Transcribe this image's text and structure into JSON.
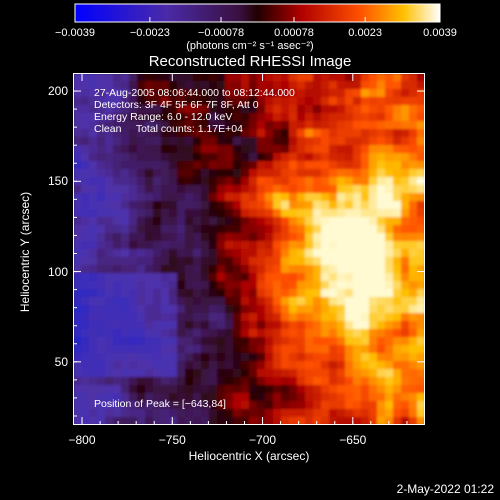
{
  "chart_data": {
    "type": "heatmap",
    "title": "Reconstructed RHESSI Image",
    "xlabel": "Heliocentric X (arcsec)",
    "ylabel": "Heliocentric Y (arcsec)",
    "xlim": [
      -805,
      -610
    ],
    "ylim": [
      15,
      210
    ],
    "x_ticks": [
      "−800",
      "−750",
      "−700",
      "−650"
    ],
    "x_tick_values": [
      -800,
      -750,
      -700,
      -650
    ],
    "y_ticks": [
      "200",
      "150",
      "100",
      "50"
    ],
    "y_tick_values": [
      200,
      150,
      100,
      50
    ],
    "colorbar": {
      "ticks": [
        "−0.0039",
        "−0.0023",
        "−0.00078",
        "0.00078",
        "0.0023",
        "0.0039"
      ],
      "tick_values": [
        -0.0039,
        -0.0023,
        -0.00078,
        0.00078,
        0.0023,
        0.0039
      ],
      "range": [
        -0.0039,
        0.0039
      ],
      "units": "(photons cm⁻² s⁻¹ asec⁻²)"
    },
    "annotations": [
      "27-Aug-2005 08:06:44.000 to 08:12:44.000",
      "Detectors: 3F 4F 5F 6F 7F 8F, Att 0",
      "Energy Range: 6.0 - 12.0 keV",
      "Clean     Total counts: 1.17E+04"
    ],
    "peak_label": "Position of Peak = [−643,84]",
    "peak_position": [
      -643,
      84
    ]
  },
  "footer": {
    "timestamp": "2-May-2022 01:22"
  }
}
